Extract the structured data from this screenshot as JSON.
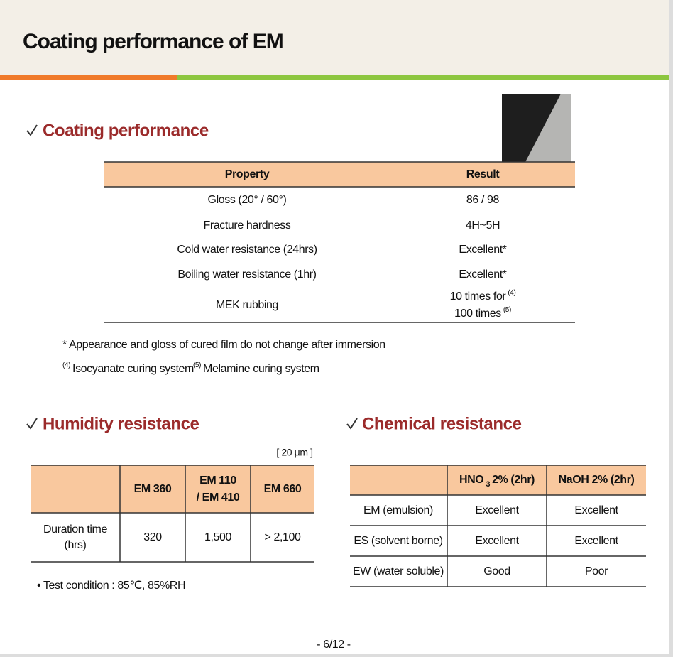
{
  "header": {
    "title": "Coating performance of EM"
  },
  "coating_performance": {
    "heading": "Coating performance",
    "table": {
      "columns": [
        "Property",
        "Result"
      ],
      "rows": [
        [
          "Gloss (20° / 60°)",
          "86 / 98"
        ],
        [
          "Fracture hardness",
          "4H~5H"
        ],
        [
          "Cold water resistance (24hrs)",
          "Excellent*"
        ],
        [
          "Boiling water resistance (1hr)",
          "Excellent*"
        ],
        [
          "MEK rubbing",
          [
            {
              "text": "10 times for",
              "sup": "(4)"
            },
            {
              "text": "100 times",
              "sup": "(5)"
            }
          ]
        ]
      ]
    },
    "notes": [
      "* Appearance and gloss of cured film do not change after immersion",
      [
        {
          "sup": "(4)",
          "text": "Isocyanate curing system"
        },
        {
          "sup": "(5)",
          "text": "Melamine curing system"
        }
      ]
    ]
  },
  "humidity_resistance": {
    "heading": "Humidity resistance",
    "unit": "[ 20 μm ]",
    "table": {
      "columns": [
        "EM 360",
        [
          "EM 110",
          "/ EM 410"
        ],
        "EM 660"
      ],
      "row_header": [
        "Duration time",
        "(hrs)"
      ],
      "values": [
        "320",
        "1,500",
        "> 2,100"
      ]
    },
    "note": "• Test condition : 85℃, 85%RH"
  },
  "chemical_resistance": {
    "heading": "Chemical resistance",
    "table": {
      "columns": [
        {
          "text": "HNO",
          "sub": "3",
          "after": "2% (2hr)"
        },
        "NaOH 2% (2hr)"
      ],
      "rows": [
        [
          "EM (emulsion)",
          "Excellent",
          "Excellent"
        ],
        [
          "ES (solvent borne)",
          "Excellent",
          "Excellent"
        ],
        [
          "EW (water soluble)",
          "Good",
          "Poor"
        ]
      ]
    }
  },
  "footer": {
    "page": "- 6/12 -"
  }
}
